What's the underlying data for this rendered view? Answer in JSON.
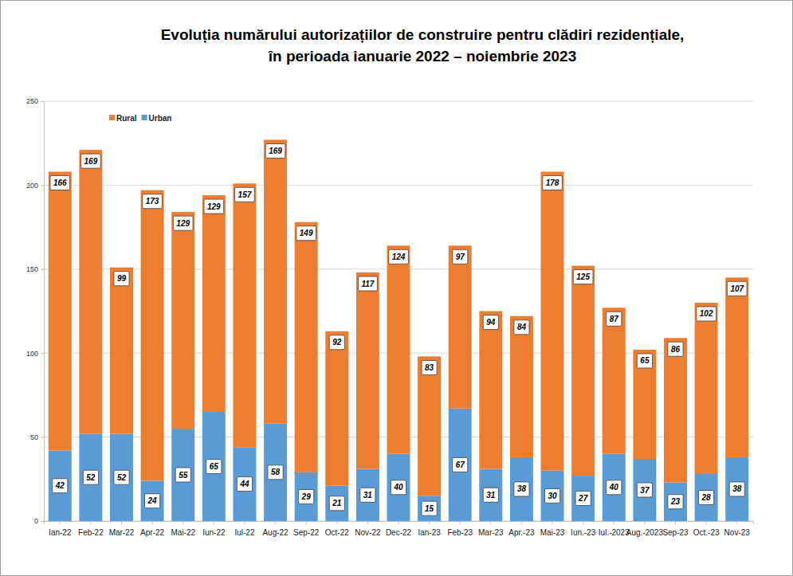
{
  "chart_data": {
    "type": "bar",
    "title": "Evoluția numărului autorizațiilor de construire pentru clădiri rezidențiale,",
    "subtitle": "în perioada ianuarie 2022 – noiembrie 2023",
    "categories": [
      "Ian-22",
      "Feb-22",
      "Mar-22",
      "Apr-22",
      "Mai-22",
      "Iun-22",
      "Iul-22",
      "Aug-22",
      "Sep-22",
      "Oct-22",
      "Nov-22",
      "Dec-22",
      "Ian-23",
      "Feb-23",
      "Mar-23",
      "Apr.-23",
      "Mai-23",
      "Iun.-23",
      "Iul.-2023",
      "Aug.-2023",
      "Sep-23",
      "Oct.-23",
      "Nov-23"
    ],
    "series": [
      {
        "name": "Rural",
        "color": "#ed7d31",
        "values": [
          166,
          169,
          99,
          173,
          129,
          129,
          157,
          169,
          149,
          92,
          117,
          124,
          83,
          97,
          94,
          84,
          178,
          125,
          87,
          65,
          86,
          102,
          107
        ]
      },
      {
        "name": "Urban",
        "color": "#5b9bd5",
        "values": [
          42,
          52,
          52,
          24,
          55,
          65,
          44,
          58,
          29,
          21,
          31,
          40,
          15,
          67,
          31,
          38,
          30,
          27,
          40,
          37,
          23,
          28,
          38
        ]
      }
    ],
    "stacked": true,
    "data_labels": true,
    "legend": "top-left",
    "grid": true,
    "ylim": [
      0,
      250
    ],
    "yticks": [
      0,
      50,
      100,
      150,
      200,
      250
    ]
  }
}
